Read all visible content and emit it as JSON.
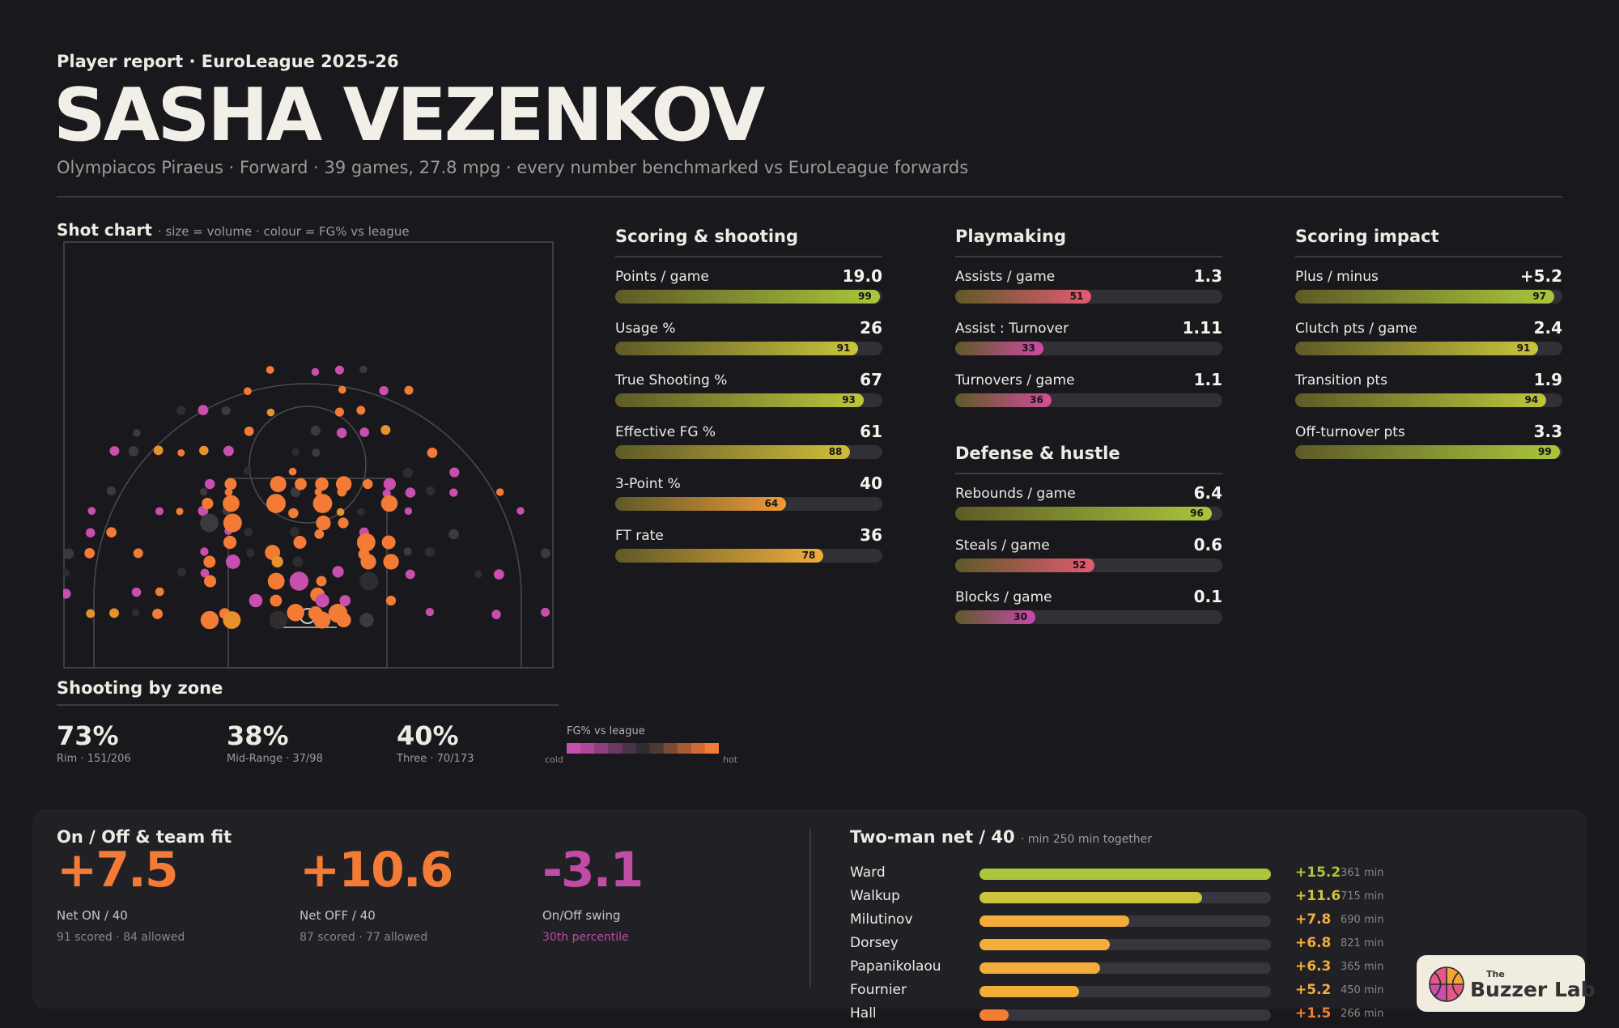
{
  "header": {
    "kicker": "Player report · EuroLeague 2025-26",
    "name": "SASHA VEZENKOV",
    "subtitle": "Olympiacos Piraeus · Forward · 39 games, 27.8 mpg · every number benchmarked vs EuroLeague forwards"
  },
  "shot_chart": {
    "title": "Shot chart",
    "subtitle": "· size = volume · colour = FG% vs league",
    "colors": {
      "hot": "#f47b36",
      "warm": "#e8922e",
      "neutral": "#3d3a3d",
      "cold": "#c94fae",
      "dim": "#2f2d30"
    }
  },
  "sections": {
    "scoring": {
      "title": "Scoring & shooting",
      "stats": [
        {
          "label": "Points / game",
          "value": "19.0",
          "pct": 99,
          "color": "#a9c63c"
        },
        {
          "label": "Usage %",
          "value": "26",
          "pct": 91,
          "color": "#c8c43c"
        },
        {
          "label": "True Shooting %",
          "value": "67",
          "pct": 93,
          "color": "#bcc53b"
        },
        {
          "label": "Effective FG %",
          "value": "61",
          "pct": 88,
          "color": "#d1bd3a"
        },
        {
          "label": "3-Point %",
          "value": "40",
          "pct": 64,
          "color": "#ef9a38"
        },
        {
          "label": "FT rate",
          "value": "36",
          "pct": 78,
          "color": "#f0ad3b"
        }
      ]
    },
    "playmaking": {
      "title": "Playmaking",
      "stats": [
        {
          "label": "Assists / game",
          "value": "1.3",
          "pct": 51,
          "color": "#e35a72"
        },
        {
          "label": "Assist : Turnover",
          "value": "1.11",
          "pct": 33,
          "color": "#cf4aa5"
        },
        {
          "label": "Turnovers / game",
          "value": "1.1",
          "pct": 36,
          "color": "#d24d9a"
        }
      ]
    },
    "defense": {
      "title": "Defense & hustle",
      "stats": [
        {
          "label": "Rebounds / game",
          "value": "6.4",
          "pct": 96,
          "color": "#a9c63c"
        },
        {
          "label": "Steals / game",
          "value": "0.6",
          "pct": 52,
          "color": "#e35a72"
        },
        {
          "label": "Blocks / game",
          "value": "0.1",
          "pct": 30,
          "color": "#c848b0"
        }
      ]
    },
    "impact": {
      "title": "Scoring impact",
      "stats": [
        {
          "label": "Plus / minus",
          "value": "+5.2",
          "pct": 97,
          "color": "#a9c63c"
        },
        {
          "label": "Clutch pts / game",
          "value": "2.4",
          "pct": 91,
          "color": "#c8c43c"
        },
        {
          "label": "Transition pts",
          "value": "1.9",
          "pct": 94,
          "color": "#bcc53b"
        },
        {
          "label": "Off-turnover pts",
          "value": "3.3",
          "pct": 99,
          "color": "#a9c63c"
        }
      ]
    }
  },
  "zones": {
    "title": "Shooting by zone",
    "items": [
      {
        "pct": "73%",
        "detail": "Rim · 151/206"
      },
      {
        "pct": "38%",
        "detail": "Mid-Range · 37/98"
      },
      {
        "pct": "40%",
        "detail": "Three · 70/173"
      }
    ],
    "legend": {
      "title": "FG% vs league",
      "cold": "cold",
      "hot": "hot",
      "colors": [
        "#c94fae",
        "#b0479a",
        "#8d3f80",
        "#6b3866",
        "#4a3349",
        "#2f2d30",
        "#4a3a33",
        "#7a4a33",
        "#a85a35",
        "#d26a36",
        "#f47b36"
      ]
    }
  },
  "onoff": {
    "title": "On / Off & team fit",
    "items": [
      {
        "value": "+7.5",
        "label": "Net ON / 40",
        "note": "91 scored · 84 allowed",
        "color": "#f47b36",
        "note_color": "#8a8884"
      },
      {
        "value": "+10.6",
        "label": "Net OFF / 40",
        "note": "87 scored · 77 allowed",
        "color": "#f47b36",
        "note_color": "#8a8884"
      },
      {
        "value": "-3.1",
        "label": "On/Off swing",
        "note": "30th percentile",
        "color": "#c04ca6",
        "note_color": "#c04ca6"
      }
    ]
  },
  "two_man": {
    "title": "Two-man net / 40",
    "subtitle": "· min 250 min together",
    "max": 15.2,
    "rows": [
      {
        "name": "Ward",
        "net": "+15.2",
        "value": 15.2,
        "minutes": "361 min",
        "color": "#a9c63c"
      },
      {
        "name": "Walkup",
        "net": "+11.6",
        "value": 11.6,
        "minutes": "715 min",
        "color": "#cdc43d"
      },
      {
        "name": "Milutinov",
        "net": "+7.8",
        "value": 7.8,
        "minutes": "690 min",
        "color": "#f2ad3b"
      },
      {
        "name": "Dorsey",
        "net": "+6.8",
        "value": 6.8,
        "minutes": "821 min",
        "color": "#f2ad3b"
      },
      {
        "name": "Papanikolaou",
        "net": "+6.3",
        "value": 6.3,
        "minutes": "365 min",
        "color": "#f2ad3b"
      },
      {
        "name": "Fournier",
        "net": "+5.2",
        "value": 5.2,
        "minutes": "450 min",
        "color": "#f2ad3b"
      },
      {
        "name": "Hall",
        "net": "+1.5",
        "value": 1.5,
        "minutes": "266 min",
        "color": "#f07e35"
      }
    ]
  },
  "logo": {
    "the": "The",
    "name": "Buzzer Lab"
  },
  "chart_data": [
    {
      "type": "bar",
      "title": "Scoring & shooting",
      "categories": [
        "Points / game",
        "Usage %",
        "True Shooting %",
        "Effective FG %",
        "3-Point %",
        "FT rate"
      ],
      "values": [
        99,
        91,
        93,
        88,
        64,
        78
      ],
      "ylim": [
        0,
        100
      ]
    },
    {
      "type": "bar",
      "title": "Playmaking",
      "categories": [
        "Assists / game",
        "Assist : Turnover",
        "Turnovers / game"
      ],
      "values": [
        51,
        33,
        36
      ],
      "ylim": [
        0,
        100
      ]
    },
    {
      "type": "bar",
      "title": "Defense & hustle",
      "categories": [
        "Rebounds / game",
        "Steals / game",
        "Blocks / game"
      ],
      "values": [
        96,
        52,
        30
      ],
      "ylim": [
        0,
        100
      ]
    },
    {
      "type": "bar",
      "title": "Scoring impact",
      "categories": [
        "Plus / minus",
        "Clutch pts / game",
        "Transition pts",
        "Off-turnover pts"
      ],
      "values": [
        97,
        91,
        94,
        99
      ],
      "ylim": [
        0,
        100
      ]
    },
    {
      "type": "bar",
      "title": "Two-man net / 40",
      "categories": [
        "Ward",
        "Walkup",
        "Milutinov",
        "Dorsey",
        "Papanikolaou",
        "Fournier",
        "Hall"
      ],
      "values": [
        15.2,
        11.6,
        7.8,
        6.8,
        6.3,
        5.2,
        1.5
      ]
    }
  ]
}
